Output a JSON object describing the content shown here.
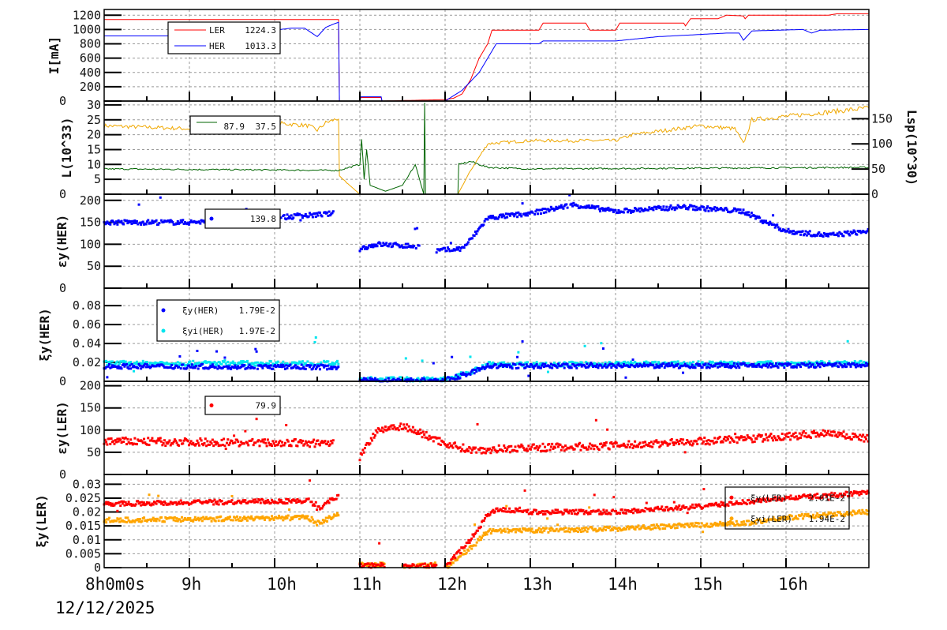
{
  "chart_data": [
    {
      "type": "line",
      "ylabel": "I[mA]",
      "ylim": [
        0,
        1280
      ],
      "yticks": [
        "0",
        "200",
        "400",
        "600",
        "800",
        "1000",
        "1200"
      ],
      "legend": [
        {
          "name": "LER",
          "value": "1224.3",
          "color": "#ff0000"
        },
        {
          "name": "HER",
          "value": "1013.3",
          "color": "#0000ff"
        }
      ],
      "series": [
        {
          "name": "LER",
          "color": "#ff0000",
          "points": [
            [
              8,
              1140
            ],
            [
              10.75,
              1140
            ],
            [
              10.76,
              0
            ],
            [
              11.0,
              0
            ],
            [
              11.01,
              50
            ],
            [
              11.25,
              50
            ],
            [
              11.26,
              0
            ],
            [
              12.0,
              20
            ],
            [
              12.1,
              40
            ],
            [
              12.2,
              100
            ],
            [
              12.3,
              300
            ],
            [
              12.4,
              600
            ],
            [
              12.5,
              800
            ],
            [
              12.55,
              990
            ],
            [
              13.1,
              990
            ],
            [
              13.15,
              1090
            ],
            [
              13.65,
              1090
            ],
            [
              13.7,
              990
            ],
            [
              14.0,
              990
            ],
            [
              14.05,
              1090
            ],
            [
              14.8,
              1090
            ],
            [
              14.82,
              1050
            ],
            [
              14.88,
              1150
            ],
            [
              15.2,
              1150
            ],
            [
              15.3,
              1200
            ],
            [
              15.5,
              1190
            ],
            [
              15.52,
              1150
            ],
            [
              15.56,
              1200
            ],
            [
              16.5,
              1200
            ],
            [
              16.6,
              1220
            ],
            [
              16.97,
              1220
            ]
          ]
        },
        {
          "name": "HER",
          "color": "#0000ff",
          "points": [
            [
              8,
              910
            ],
            [
              9.5,
              910
            ],
            [
              9.6,
              950
            ],
            [
              9.7,
              980
            ],
            [
              10.0,
              990
            ],
            [
              10.2,
              1020
            ],
            [
              10.35,
              1020
            ],
            [
              10.5,
              900
            ],
            [
              10.6,
              1030
            ],
            [
              10.7,
              1080
            ],
            [
              10.75,
              1100
            ],
            [
              10.76,
              0
            ],
            [
              11.0,
              0
            ],
            [
              11.01,
              60
            ],
            [
              11.25,
              60
            ],
            [
              11.26,
              0
            ],
            [
              12.0,
              0
            ],
            [
              12.2,
              150
            ],
            [
              12.4,
              400
            ],
            [
              12.5,
              600
            ],
            [
              12.6,
              800
            ],
            [
              13.1,
              800
            ],
            [
              13.15,
              840
            ],
            [
              14.0,
              840
            ],
            [
              14.5,
              900
            ],
            [
              15.3,
              950
            ],
            [
              15.45,
              950
            ],
            [
              15.5,
              850
            ],
            [
              15.6,
              980
            ],
            [
              16.2,
              1000
            ],
            [
              16.3,
              950
            ],
            [
              16.4,
              990
            ],
            [
              16.97,
              1000
            ]
          ]
        }
      ]
    },
    {
      "type": "line",
      "ylabel": "L(10^33)",
      "ylabel_right": "Lsp(10^30)",
      "ylim": [
        0,
        31.3
      ],
      "ylim_right": [
        0,
        185
      ],
      "yticks": [
        "0",
        "5",
        "10",
        "15",
        "20",
        "25",
        "30"
      ],
      "yticks_right": [
        "0",
        "50",
        "100",
        "150"
      ],
      "legend": [
        {
          "value": "87.9",
          "color": "#f0a800"
        },
        {
          "value": "37.5",
          "color": "#006400"
        }
      ],
      "series": [
        {
          "color": "#f0a800",
          "points": [
            [
              8,
              23
            ],
            [
              9,
              22
            ],
            [
              10,
              24
            ],
            [
              10.4,
              23
            ],
            [
              10.5,
              21.5
            ],
            [
              10.6,
              24
            ],
            [
              10.75,
              25.5
            ],
            [
              10.76,
              6
            ],
            [
              11.0,
              0
            ],
            [
              12.15,
              0
            ],
            [
              12.3,
              8
            ],
            [
              12.5,
              17
            ],
            [
              13,
              18
            ],
            [
              14,
              18
            ],
            [
              14.2,
              20
            ],
            [
              15,
              23
            ],
            [
              15.4,
              22
            ],
            [
              15.5,
              17
            ],
            [
              15.6,
              25
            ],
            [
              16.97,
              29
            ]
          ]
        },
        {
          "color": "#006400",
          "points": [
            [
              8,
              8.5
            ],
            [
              10.75,
              8
            ],
            [
              11.0,
              10
            ],
            [
              11.02,
              19
            ],
            [
              11.05,
              5
            ],
            [
              11.08,
              15
            ],
            [
              11.12,
              3
            ],
            [
              11.3,
              1
            ],
            [
              11.5,
              3
            ],
            [
              11.65,
              10
            ],
            [
              11.75,
              0
            ],
            [
              11.76,
              30
            ],
            [
              11.77,
              0
            ],
            [
              12.15,
              0
            ],
            [
              12.16,
              10
            ],
            [
              12.3,
              11
            ],
            [
              12.5,
              9
            ],
            [
              13,
              8.5
            ],
            [
              16.97,
              9
            ]
          ]
        }
      ]
    },
    {
      "type": "scatter",
      "ylabel": "εy(HER)",
      "ylim": [
        0,
        214
      ],
      "yticks": [
        "0",
        "50",
        "100",
        "150",
        "200"
      ],
      "legend": [
        {
          "value": "139.8",
          "color": "#0000ff"
        }
      ],
      "series": [
        {
          "color": "#0000ff",
          "segments": [
            [
              [
                8,
                150
              ],
              [
                9,
                150
              ],
              [
                10,
                160
              ],
              [
                10.7,
                170
              ]
            ],
            [
              [
                11.0,
                90
              ],
              [
                11.2,
                100
              ],
              [
                11.7,
                95
              ]
            ],
            [
              [
                11.9,
                85
              ],
              [
                12.2,
                90
              ],
              [
                12.3,
                110
              ],
              [
                12.5,
                160
              ],
              [
                13,
                170
              ],
              [
                13.5,
                190
              ],
              [
                14,
                175
              ],
              [
                14.8,
                185
              ],
              [
                15.5,
                175
              ],
              [
                16,
                130
              ],
              [
                16.5,
                120
              ],
              [
                16.97,
                130
              ]
            ]
          ]
        }
      ]
    },
    {
      "type": "scatter",
      "ylabel": "ξy(HER)",
      "ylim": [
        0,
        0.0985
      ],
      "yticks": [
        "0",
        "0.02",
        "0.04",
        "0.06",
        "0.08"
      ],
      "legend": [
        {
          "name": "ξy(HER)",
          "value": "1.79E-2",
          "color": "#0000ff"
        },
        {
          "name": "ξyi(HER)",
          "value": "1.97E-2",
          "color": "#00e5ee"
        }
      ],
      "series": [
        {
          "color": "#00e5ee",
          "segments": [
            [
              [
                8,
                0.019
              ],
              [
                10.75,
                0.019
              ]
            ],
            [
              [
                11.0,
                0.002
              ],
              [
                12.0,
                0.002
              ],
              [
                12.3,
                0.01
              ],
              [
                12.5,
                0.018
              ],
              [
                16.97,
                0.019
              ]
            ]
          ]
        },
        {
          "color": "#0000ff",
          "segments": [
            [
              [
                8,
                0.016
              ],
              [
                10.75,
                0.015
              ]
            ],
            [
              [
                11.0,
                0.001
              ],
              [
                12.0,
                0.001
              ],
              [
                12.3,
                0.009
              ],
              [
                12.5,
                0.016
              ],
              [
                16.97,
                0.017
              ]
            ]
          ]
        }
      ]
    },
    {
      "type": "scatter",
      "ylabel": "εy(LER)",
      "ylim": [
        0,
        210
      ],
      "yticks": [
        "0",
        "50",
        "100",
        "150",
        "200"
      ],
      "legend": [
        {
          "value": "79.9",
          "color": "#ff0000"
        }
      ],
      "series": [
        {
          "color": "#ff0000",
          "segments": [
            [
              [
                8,
                75
              ],
              [
                10.7,
                70
              ]
            ],
            [
              [
                11.0,
                40
              ],
              [
                11.1,
                70
              ],
              [
                11.2,
                100
              ],
              [
                11.5,
                110
              ],
              [
                12.0,
                70
              ],
              [
                12.3,
                55
              ],
              [
                13,
                60
              ],
              [
                14,
                65
              ],
              [
                15,
                75
              ],
              [
                16,
                85
              ],
              [
                16.5,
                95
              ],
              [
                16.97,
                80
              ]
            ]
          ]
        }
      ]
    },
    {
      "type": "scatter",
      "ylabel": "ξy(LER)",
      "ylim": [
        0,
        0.0335
      ],
      "yticks": [
        "0",
        "0.005",
        "0.01",
        "0.015",
        "0.02",
        "0.025",
        "0.03"
      ],
      "legend": [
        {
          "name": "ξy(LER)",
          "value": "2.61E-2",
          "color": "#ff0000"
        },
        {
          "name": "ξyi(LER)",
          "value": "1.94E-2",
          "color": "#ffa500"
        }
      ],
      "series": [
        {
          "color": "#ffa500",
          "segments": [
            [
              [
                8,
                0.017
              ],
              [
                10.4,
                0.018
              ],
              [
                10.5,
                0.016
              ],
              [
                10.75,
                0.019
              ]
            ],
            [
              [
                11.0,
                0.001
              ],
              [
                11.3,
                0.001
              ]
            ],
            [
              [
                11.5,
                0.0003
              ],
              [
                11.9,
                0.001
              ]
            ],
            [
              [
                12.0,
                0
              ],
              [
                12.3,
                0.007
              ],
              [
                12.5,
                0.013
              ],
              [
                14,
                0.014
              ],
              [
                15.5,
                0.016
              ],
              [
                16,
                0.018
              ],
              [
                16.97,
                0.02
              ]
            ]
          ]
        },
        {
          "color": "#ff0000",
          "segments": [
            [
              [
                8,
                0.023
              ],
              [
                10.4,
                0.024
              ],
              [
                10.5,
                0.021
              ],
              [
                10.75,
                0.026
              ]
            ],
            [
              [
                11.0,
                0.0005
              ],
              [
                11.3,
                0.001
              ]
            ],
            [
              [
                11.5,
                0.0003
              ],
              [
                11.9,
                0.0008
              ]
            ],
            [
              [
                12.0,
                0
              ],
              [
                12.3,
                0.01
              ],
              [
                12.5,
                0.019
              ],
              [
                12.6,
                0.021
              ],
              [
                13,
                0.02
              ],
              [
                14,
                0.02
              ],
              [
                15,
                0.022
              ],
              [
                16,
                0.025
              ],
              [
                16.97,
                0.027
              ]
            ]
          ]
        }
      ]
    }
  ],
  "xaxis": {
    "start_label": "8h0m0s",
    "date": "12/12/2025",
    "xlim": [
      8,
      16.97
    ],
    "ticks": [
      "9h",
      "10h",
      "11h",
      "12h",
      "13h",
      "14h",
      "15h",
      "16h"
    ]
  }
}
